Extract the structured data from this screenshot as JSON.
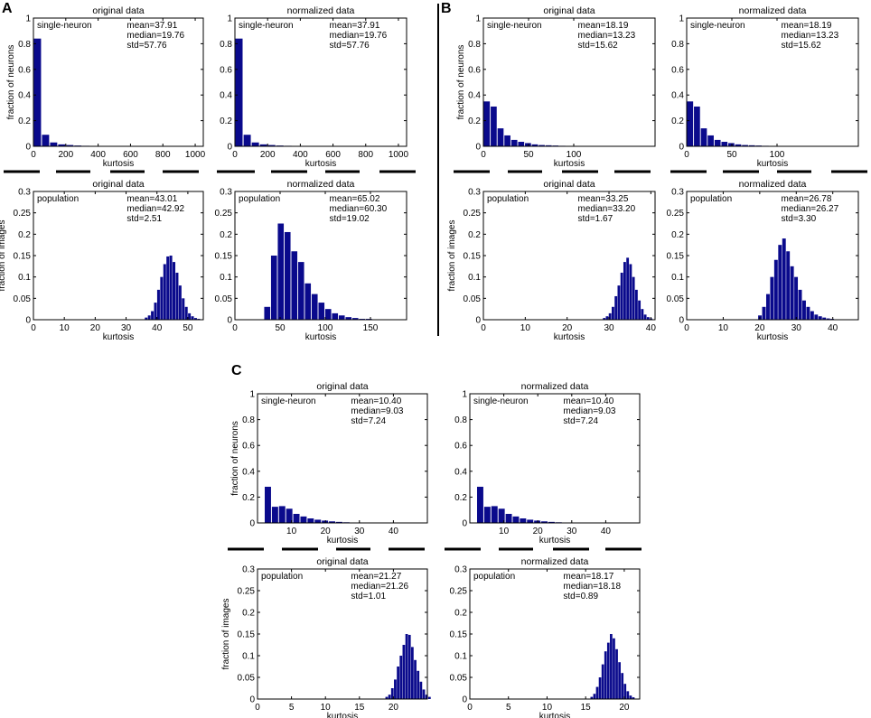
{
  "colors": {
    "bar": "#0a0a8c",
    "axis": "#000000",
    "divider": "#000000"
  },
  "chart_data": [
    {
      "type": "bar",
      "panel": "A",
      "title": "original data",
      "label": "single-neuron",
      "xlabel": "kurtosis",
      "ylabel": "fraction of neurons",
      "stats": {
        "mean": "mean=37.91",
        "median": "median=19.76",
        "std": "std=57.76"
      },
      "xlim": [
        0,
        1050
      ],
      "ylim": [
        0,
        1
      ],
      "xticks": [
        0,
        200,
        400,
        600,
        800,
        1000
      ],
      "xtick_labels": [
        "0",
        "200",
        "400",
        "600",
        "800",
        "1000"
      ],
      "yticks": [
        0,
        0.2,
        0.4,
        0.6,
        0.8,
        1
      ],
      "ytick_labels": [
        "0",
        "0.2",
        "0.4",
        "0.6",
        "0.8",
        "1"
      ],
      "bin_width": 50,
      "bin_start": 0,
      "values": [
        0.84,
        0.09,
        0.03,
        0.015,
        0.01,
        0.006,
        0.004,
        0.003,
        0.002,
        0.002,
        0.001,
        0.001,
        0.001,
        0.001,
        0.001,
        0.001,
        0.001,
        0.001,
        0.0005,
        0.0005,
        0.0005
      ]
    },
    {
      "type": "bar",
      "panel": "A",
      "title": "normalized data",
      "label": "single-neuron",
      "xlabel": "kurtosis",
      "ylabel": "",
      "stats": {
        "mean": "mean=37.91",
        "median": "median=19.76",
        "std": "std=57.76"
      },
      "xlim": [
        0,
        1050
      ],
      "ylim": [
        0,
        1
      ],
      "xticks": [
        0,
        200,
        400,
        600,
        800,
        1000
      ],
      "xtick_labels": [
        "0",
        "200",
        "400",
        "600",
        "800",
        "1000"
      ],
      "yticks": [
        0,
        0.2,
        0.4,
        0.6,
        0.8,
        1
      ],
      "ytick_labels": [
        "0",
        "0.2",
        "0.4",
        "0.6",
        "0.8",
        "1"
      ],
      "bin_width": 50,
      "bin_start": 0,
      "values": [
        0.84,
        0.09,
        0.03,
        0.015,
        0.01,
        0.006,
        0.004,
        0.003,
        0.002,
        0.002,
        0.001,
        0.001,
        0.001,
        0.001,
        0.001,
        0.001,
        0.001,
        0.001,
        0.0005,
        0.0005,
        0.0005
      ]
    },
    {
      "type": "bar",
      "panel": "A",
      "title": "original data",
      "label": "population",
      "xlabel": "kurtosis",
      "ylabel": "fraction of images",
      "stats": {
        "mean": "mean=43.01",
        "median": "median=42.92",
        "std": "std=2.51"
      },
      "xlim": [
        0,
        55
      ],
      "ylim": [
        0,
        0.3
      ],
      "xticks": [
        0,
        10,
        20,
        30,
        40,
        50
      ],
      "xtick_labels": [
        "0",
        "10",
        "20",
        "30",
        "40",
        "50"
      ],
      "yticks": [
        0,
        0.05,
        0.1,
        0.15,
        0.2,
        0.25,
        0.3
      ],
      "ytick_labels": [
        "0",
        "0.05",
        "0.1",
        "0.15",
        "0.2",
        "0.25",
        "0.3"
      ],
      "bin_width": 1,
      "bin_start": 36,
      "values": [
        0.005,
        0.01,
        0.02,
        0.04,
        0.07,
        0.1,
        0.13,
        0.148,
        0.15,
        0.135,
        0.11,
        0.08,
        0.05,
        0.03,
        0.015,
        0.008,
        0.004,
        0.002
      ]
    },
    {
      "type": "bar",
      "panel": "A",
      "title": "normalized data",
      "label": "population",
      "xlabel": "kurtosis",
      "ylabel": "",
      "stats": {
        "mean": "mean=65.02",
        "median": "median=60.30",
        "std": "std=19.02"
      },
      "xlim": [
        0,
        190
      ],
      "ylim": [
        0,
        0.3
      ],
      "xticks": [
        0,
        50,
        100,
        150
      ],
      "xtick_labels": [
        "0",
        "50",
        "100",
        "150"
      ],
      "yticks": [
        0,
        0.05,
        0.1,
        0.15,
        0.2,
        0.25,
        0.3
      ],
      "ytick_labels": [
        "0",
        "0.05",
        "0.1",
        "0.15",
        "0.2",
        "0.25",
        "0.3"
      ],
      "bin_width": 7.5,
      "bin_start": 32,
      "values": [
        0.03,
        0.15,
        0.225,
        0.205,
        0.16,
        0.135,
        0.085,
        0.06,
        0.04,
        0.025,
        0.015,
        0.01,
        0.006,
        0.004,
        0.002,
        0.002,
        0.001,
        0.001,
        0.001,
        0.001
      ]
    },
    {
      "type": "bar",
      "panel": "B",
      "title": "original data",
      "label": "single-neuron",
      "xlabel": "kurtosis",
      "ylabel": "fraction of neurons",
      "stats": {
        "mean": "mean=18.19",
        "median": "median=13.23",
        "std": "std=15.62"
      },
      "xlim": [
        0,
        190
      ],
      "ylim": [
        0,
        1
      ],
      "xticks": [
        0,
        50,
        100
      ],
      "xtick_labels": [
        "0",
        "50",
        "100"
      ],
      "yticks": [
        0,
        0.2,
        0.4,
        0.6,
        0.8,
        1
      ],
      "ytick_labels": [
        "0",
        "0.2",
        "0.4",
        "0.6",
        "0.8",
        "1"
      ],
      "bin_width": 7.6,
      "bin_start": 0,
      "values": [
        0.35,
        0.31,
        0.14,
        0.085,
        0.05,
        0.035,
        0.025,
        0.015,
        0.01,
        0.008,
        0.006,
        0.004,
        0.003,
        0.002,
        0.002,
        0.001,
        0.001,
        0.001,
        0.001,
        0.001,
        0.0005,
        0.0005,
        0.0005,
        0.0005,
        0.0005
      ]
    },
    {
      "type": "bar",
      "panel": "B",
      "title": "normalized data",
      "label": "single-neuron",
      "xlabel": "kurtosis",
      "ylabel": "",
      "stats": {
        "mean": "mean=18.19",
        "median": "median=13.23",
        "std": "std=15.62"
      },
      "xlim": [
        0,
        190
      ],
      "ylim": [
        0,
        1
      ],
      "xticks": [
        0,
        50,
        100
      ],
      "xtick_labels": [
        "0",
        "50",
        "100"
      ],
      "yticks": [
        0,
        0.2,
        0.4,
        0.6,
        0.8,
        1
      ],
      "ytick_labels": [
        "0",
        "0.2",
        "0.4",
        "0.6",
        "0.8",
        "1"
      ],
      "bin_width": 7.6,
      "bin_start": 0,
      "values": [
        0.35,
        0.31,
        0.14,
        0.085,
        0.05,
        0.035,
        0.025,
        0.015,
        0.01,
        0.008,
        0.006,
        0.004,
        0.003,
        0.002,
        0.002,
        0.001,
        0.001,
        0.001,
        0.001,
        0.001,
        0.0005,
        0.0005,
        0.0005,
        0.0005,
        0.0005
      ]
    },
    {
      "type": "bar",
      "panel": "B",
      "title": "original data",
      "label": "population",
      "xlabel": "kurtosis",
      "ylabel": "fraction of images",
      "stats": {
        "mean": "mean=33.25",
        "median": "median=33.20",
        "std": "std=1.67"
      },
      "xlim": [
        0,
        41
      ],
      "ylim": [
        0,
        0.3
      ],
      "xticks": [
        0,
        10,
        20,
        30,
        40
      ],
      "xtick_labels": [
        "0",
        "10",
        "20",
        "30",
        "40"
      ],
      "yticks": [
        0,
        0.05,
        0.1,
        0.15,
        0.2,
        0.25,
        0.3
      ],
      "ytick_labels": [
        "0",
        "0.05",
        "0.1",
        "0.15",
        "0.2",
        "0.25",
        "0.3"
      ],
      "bin_width": 0.7,
      "bin_start": 28.5,
      "values": [
        0.004,
        0.008,
        0.015,
        0.03,
        0.055,
        0.08,
        0.11,
        0.135,
        0.145,
        0.13,
        0.1,
        0.07,
        0.045,
        0.025,
        0.012,
        0.006,
        0.003
      ]
    },
    {
      "type": "bar",
      "panel": "B",
      "title": "normalized data",
      "label": "population",
      "xlabel": "kurtosis",
      "ylabel": "",
      "stats": {
        "mean": "mean=26.78",
        "median": "median=26.27",
        "std": "std=3.30"
      },
      "xlim": [
        0,
        47
      ],
      "ylim": [
        0,
        0.3
      ],
      "xticks": [
        0,
        10,
        20,
        30,
        40
      ],
      "xtick_labels": [
        "0",
        "10",
        "20",
        "30",
        "40"
      ],
      "yticks": [
        0,
        0.05,
        0.1,
        0.15,
        0.2,
        0.25,
        0.3
      ],
      "ytick_labels": [
        "0",
        "0.05",
        "0.1",
        "0.15",
        "0.2",
        "0.25",
        "0.3"
      ],
      "bin_width": 1.1,
      "bin_start": 19.5,
      "values": [
        0.01,
        0.03,
        0.06,
        0.1,
        0.14,
        0.175,
        0.19,
        0.16,
        0.125,
        0.1,
        0.07,
        0.045,
        0.03,
        0.02,
        0.012,
        0.008,
        0.005,
        0.003,
        0.002,
        0.001
      ]
    },
    {
      "type": "bar",
      "panel": "C",
      "title": "original data",
      "label": "single-neuron",
      "xlabel": "kurtosis",
      "ylabel": "fraction of neurons",
      "stats": {
        "mean": "mean=10.40",
        "median": "median=9.03",
        "std": "std=7.24"
      },
      "xlim": [
        0,
        50
      ],
      "ylim": [
        0,
        1
      ],
      "xticks": [
        10,
        20,
        30,
        40
      ],
      "xtick_labels": [
        "10",
        "20",
        "30",
        "40"
      ],
      "yticks": [
        0,
        0.2,
        0.4,
        0.6,
        0.8,
        1
      ],
      "ytick_labels": [
        "0",
        "0.2",
        "0.4",
        "0.6",
        "0.8",
        "1"
      ],
      "bin_width": 2.1,
      "bin_start": 2,
      "values": [
        0.28,
        0.125,
        0.13,
        0.11,
        0.07,
        0.05,
        0.035,
        0.025,
        0.018,
        0.012,
        0.008,
        0.005,
        0.003,
        0.002,
        0.002,
        0.001,
        0.001,
        0.001,
        0.0005,
        0.0005
      ]
    },
    {
      "type": "bar",
      "panel": "C",
      "title": "normalized data",
      "label": "single-neuron",
      "xlabel": "kurtosis",
      "ylabel": "",
      "stats": {
        "mean": "mean=10.40",
        "median": "median=9.03",
        "std": "std=7.24"
      },
      "xlim": [
        0,
        50
      ],
      "ylim": [
        0,
        1
      ],
      "xticks": [
        10,
        20,
        30,
        40
      ],
      "xtick_labels": [
        "10",
        "20",
        "30",
        "40"
      ],
      "yticks": [
        0,
        0.2,
        0.4,
        0.6,
        0.8,
        1
      ],
      "ytick_labels": [
        "0",
        "0.2",
        "0.4",
        "0.6",
        "0.8",
        "1"
      ],
      "bin_width": 2.1,
      "bin_start": 2,
      "values": [
        0.28,
        0.125,
        0.13,
        0.11,
        0.07,
        0.05,
        0.035,
        0.025,
        0.018,
        0.012,
        0.008,
        0.005,
        0.003,
        0.002,
        0.002,
        0.001,
        0.001,
        0.001,
        0.0005,
        0.0005
      ]
    },
    {
      "type": "bar",
      "panel": "C",
      "title": "original data",
      "label": "population",
      "xlabel": "kurtosis",
      "ylabel": "fraction of images",
      "stats": {
        "mean": "mean=21.27",
        "median": "median=21.26",
        "std": "std=1.01"
      },
      "xlim": [
        0,
        25
      ],
      "ylim": [
        0,
        0.3
      ],
      "xticks": [
        0,
        5,
        10,
        15,
        20
      ],
      "xtick_labels": [
        "0",
        "5",
        "10",
        "15",
        "20"
      ],
      "yticks": [
        0,
        0.05,
        0.1,
        0.15,
        0.2,
        0.25,
        0.3
      ],
      "ytick_labels": [
        "0",
        "0.05",
        "0.1",
        "0.15",
        "0.2",
        "0.25",
        "0.3"
      ],
      "bin_width": 0.42,
      "bin_start": 18.8,
      "values": [
        0.005,
        0.01,
        0.025,
        0.045,
        0.075,
        0.1,
        0.125,
        0.15,
        0.148,
        0.12,
        0.09,
        0.065,
        0.04,
        0.022,
        0.01,
        0.005
      ]
    },
    {
      "type": "bar",
      "panel": "C",
      "title": "normalized data",
      "label": "population",
      "xlabel": "kurtosis",
      "ylabel": "",
      "stats": {
        "mean": "mean=18.17",
        "median": "median=18.18",
        "std": "std=0.89"
      },
      "xlim": [
        0,
        22
      ],
      "ylim": [
        0,
        0.3
      ],
      "xticks": [
        0,
        5,
        10,
        15,
        20
      ],
      "xtick_labels": [
        "0",
        "5",
        "10",
        "15",
        "20"
      ],
      "yticks": [
        0,
        0.05,
        0.1,
        0.15,
        0.2,
        0.25,
        0.3
      ],
      "ytick_labels": [
        "0",
        "0.05",
        "0.1",
        "0.15",
        "0.2",
        "0.25",
        "0.3"
      ],
      "bin_width": 0.36,
      "bin_start": 15.6,
      "values": [
        0.005,
        0.012,
        0.028,
        0.05,
        0.08,
        0.11,
        0.13,
        0.15,
        0.14,
        0.115,
        0.085,
        0.06,
        0.035,
        0.018,
        0.008,
        0.004
      ]
    }
  ],
  "panel_letters": [
    "A",
    "B",
    "C"
  ]
}
